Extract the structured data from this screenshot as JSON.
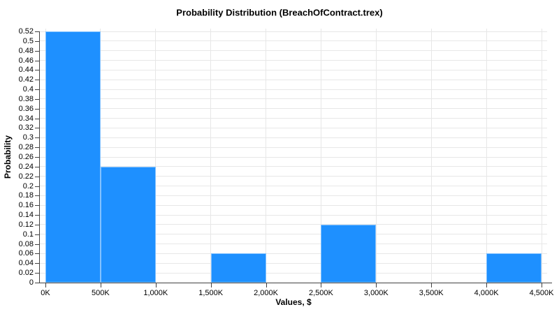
{
  "chart_data": {
    "type": "bar",
    "title": "Probability Distribution (BreachOfContract.trex)",
    "xlabel": "Values, $",
    "ylabel": "Probability",
    "xlim": [
      0,
      4500
    ],
    "ylim": [
      0,
      0.52
    ],
    "x_unit": "K",
    "grid": true,
    "legend": "none",
    "x_ticks": [
      {
        "v": 0,
        "label": "0K"
      },
      {
        "v": 500,
        "label": "500K"
      },
      {
        "v": 1000,
        "label": "1,000K"
      },
      {
        "v": 1500,
        "label": "1,500K"
      },
      {
        "v": 2000,
        "label": "2,000K"
      },
      {
        "v": 2500,
        "label": "2,500K"
      },
      {
        "v": 3000,
        "label": "3,000K"
      },
      {
        "v": 3500,
        "label": "3,500K"
      },
      {
        "v": 4000,
        "label": "4,000K"
      },
      {
        "v": 4500,
        "label": "4,500K"
      }
    ],
    "y_ticks": [
      {
        "v": 0,
        "label": "0"
      },
      {
        "v": 0.02,
        "label": "0.02"
      },
      {
        "v": 0.04,
        "label": "0.04"
      },
      {
        "v": 0.06,
        "label": "0.06"
      },
      {
        "v": 0.08,
        "label": "0.08"
      },
      {
        "v": 0.1,
        "label": "0.1"
      },
      {
        "v": 0.12,
        "label": "0.12"
      },
      {
        "v": 0.14,
        "label": "0.14"
      },
      {
        "v": 0.16,
        "label": "0.16"
      },
      {
        "v": 0.18,
        "label": "0.18"
      },
      {
        "v": 0.2,
        "label": "0.2"
      },
      {
        "v": 0.22,
        "label": "0.22"
      },
      {
        "v": 0.24,
        "label": "0.24"
      },
      {
        "v": 0.26,
        "label": "0.26"
      },
      {
        "v": 0.28,
        "label": "0.28"
      },
      {
        "v": 0.3,
        "label": "0.3"
      },
      {
        "v": 0.32,
        "label": "0.32"
      },
      {
        "v": 0.34,
        "label": "0.34"
      },
      {
        "v": 0.36,
        "label": "0.36"
      },
      {
        "v": 0.38,
        "label": "0.38"
      },
      {
        "v": 0.4,
        "label": "0.4"
      },
      {
        "v": 0.42,
        "label": "0.42"
      },
      {
        "v": 0.44,
        "label": "0.44"
      },
      {
        "v": 0.46,
        "label": "0.46"
      },
      {
        "v": 0.48,
        "label": "0.48"
      },
      {
        "v": 0.5,
        "label": "0.5"
      },
      {
        "v": 0.52,
        "label": "0.52"
      }
    ],
    "bars": [
      {
        "x0": 0,
        "x1": 500,
        "probability": 0.52
      },
      {
        "x0": 500,
        "x1": 1000,
        "probability": 0.24
      },
      {
        "x0": 1500,
        "x1": 2000,
        "probability": 0.06
      },
      {
        "x0": 2500,
        "x1": 3000,
        "probability": 0.12
      },
      {
        "x0": 4000,
        "x1": 4500,
        "probability": 0.06
      }
    ],
    "colors": {
      "bar": "#1E90FF",
      "bar_edge": "rgba(255,255,255,0.45)",
      "grid": "#e7e7e7",
      "axis": "#424242",
      "text": "#000000",
      "background": "#ffffff"
    }
  }
}
